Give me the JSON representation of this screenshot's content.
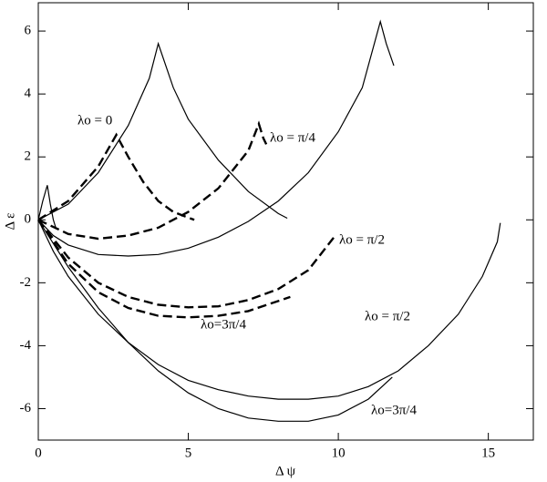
{
  "chart_data": {
    "type": "line",
    "xlabel": "Δ ψ",
    "ylabel": "Δ ε",
    "xlim": [
      0,
      16.5
    ],
    "ylim": [
      -7,
      6.9
    ],
    "xticks": [
      0,
      5,
      10,
      15
    ],
    "yticks": [
      -6,
      -4,
      -2,
      0,
      2,
      4,
      6
    ],
    "grid": false,
    "series": [
      {
        "color": "#000000",
        "dashed": false,
        "x": [
          0,
          0.15,
          0.3,
          0.4,
          0.5,
          0.6
        ],
        "values": [
          0,
          0.6,
          1.1,
          0.5,
          0.0,
          -0.3
        ]
      },
      {
        "color": "#000000",
        "dashed": false,
        "x": [
          0,
          1,
          2,
          3,
          3.7,
          4,
          4.5,
          5,
          6,
          7,
          8,
          8.3
        ],
        "values": [
          0,
          0.5,
          1.5,
          3,
          4.5,
          5.6,
          4.2,
          3.2,
          1.9,
          0.9,
          0.2,
          0.05
        ]
      },
      {
        "color": "#000000",
        "dashed": false,
        "x": [
          0,
          0.5,
          1,
          2,
          3,
          4,
          5,
          6,
          7,
          8,
          9,
          10,
          10.8,
          11.4,
          11.6,
          11.85
        ],
        "values": [
          0,
          -0.5,
          -0.8,
          -1.1,
          -1.15,
          -1.1,
          -0.9,
          -0.55,
          -0.05,
          0.6,
          1.5,
          2.8,
          4.2,
          6.3,
          5.6,
          4.9
        ]
      },
      {
        "color": "#000000",
        "dashed": false,
        "x": [
          0,
          0.5,
          1,
          2,
          3,
          4,
          5,
          6,
          7,
          8,
          9,
          10,
          11,
          12,
          13,
          14,
          14.8,
          15.3,
          15.4
        ],
        "values": [
          0,
          -1,
          -1.8,
          -3,
          -3.9,
          -4.6,
          -5.1,
          -5.4,
          -5.6,
          -5.7,
          -5.7,
          -5.6,
          -5.3,
          -4.8,
          -4.0,
          -3.0,
          -1.8,
          -0.7,
          -0.1
        ]
      },
      {
        "color": "#000000",
        "dashed": false,
        "x": [
          0,
          1,
          2,
          3,
          4,
          5,
          6,
          7,
          8,
          9,
          10,
          11,
          11.8
        ],
        "values": [
          0,
          -1.5,
          -2.8,
          -3.9,
          -4.8,
          -5.5,
          -6.0,
          -6.3,
          -6.4,
          -6.4,
          -6.2,
          -5.7,
          -5.0
        ]
      },
      {
        "color": "#000000",
        "dashed": true,
        "x": [
          0,
          1,
          2,
          2.6,
          3,
          3.5,
          4,
          4.5,
          5.2
        ],
        "values": [
          0,
          0.6,
          1.7,
          2.7,
          2.0,
          1.2,
          0.6,
          0.25,
          0
        ]
      },
      {
        "color": "#000000",
        "dashed": true,
        "x": [
          0,
          1,
          2,
          3,
          4,
          5,
          6,
          7,
          7.35,
          7.5,
          7.6
        ],
        "values": [
          0,
          -0.45,
          -0.6,
          -0.5,
          -0.25,
          0.25,
          1.0,
          2.2,
          3.05,
          2.6,
          2.4
        ]
      },
      {
        "color": "#000000",
        "dashed": true,
        "x": [
          0,
          1,
          2,
          3,
          4,
          5,
          6,
          7,
          8,
          9,
          9.9
        ],
        "values": [
          0,
          -1.2,
          -2.0,
          -2.45,
          -2.7,
          -2.78,
          -2.75,
          -2.55,
          -2.2,
          -1.6,
          -0.5
        ]
      },
      {
        "color": "#000000",
        "dashed": true,
        "x": [
          0,
          1,
          2,
          3,
          4,
          5,
          6,
          7,
          8.4
        ],
        "values": [
          0,
          -1.4,
          -2.3,
          -2.8,
          -3.05,
          -3.1,
          -3.05,
          -2.9,
          -2.45
        ]
      }
    ],
    "annotations": [
      "λo = 0",
      "λo = π/4",
      "λo = π/2",
      "λo=3π/4",
      "λo = π/2",
      "λo=3π/4"
    ]
  }
}
